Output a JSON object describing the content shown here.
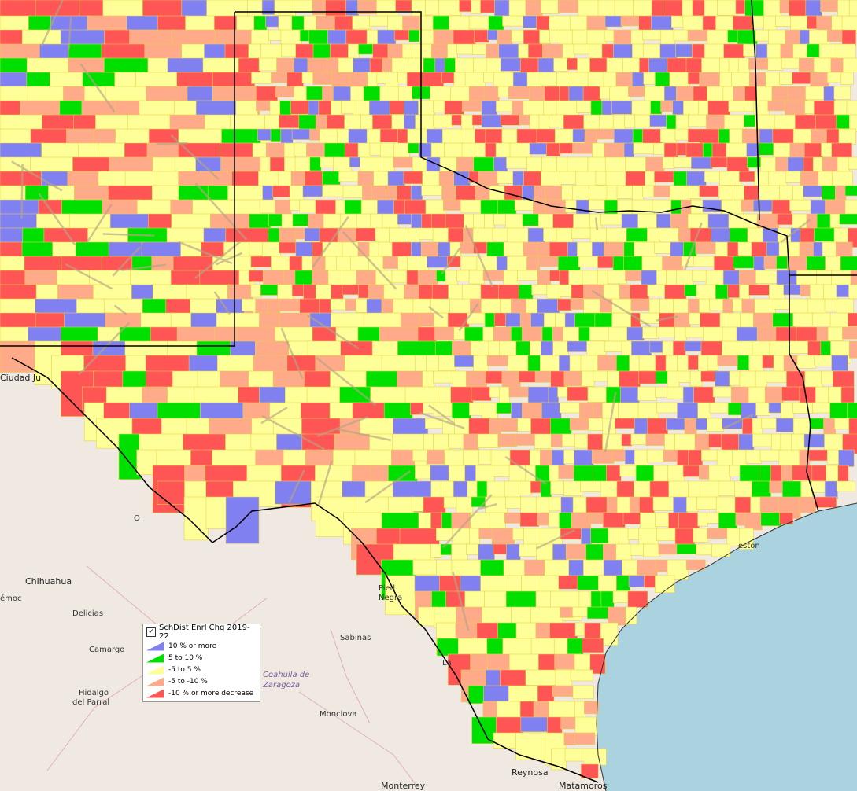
{
  "legend": {
    "checkbox": "✓",
    "title": "SchDist Enrl Chg 2019-22",
    "items": [
      {
        "label": "10 % or more",
        "color": "#8080f0"
      },
      {
        "label": "5 to 10 %",
        "color": "#00e000"
      },
      {
        "label": "-5 to 5 %",
        "color": "#ffff99"
      },
      {
        "label": "-5 to -10 %",
        "color": "#ffaa88"
      },
      {
        "label": "-10 % or more decrease",
        "color": "#ff5555"
      }
    ]
  },
  "colors": {
    "land": "#efe9e1",
    "water": "#aad3df",
    "state_border": "#000000",
    "county_border": "#b0a080"
  },
  "places": {
    "ciudad_juarez": "Ciudad Ju",
    "chihuahua": "Chihuahua",
    "democ": "émoc",
    "delicias": "Delicias",
    "camargo": "Camargo",
    "hidalgo": "Hidalgo\ndel Parral",
    "hidalgo_line1": "Hidalgo",
    "hidalgo_line2": "del Parral",
    "coahuila_line1": "Coahuila de",
    "coahuila_line2": "Zaragoza",
    "sabinas": "Sabinas",
    "monclova": "Monclova",
    "piedras_line1": "Pied",
    "piedras_line2": "Negra",
    "monterrey": "Monterrey",
    "reynosa": "Reynosa",
    "matamoros": "Matamoros",
    "galveston": "eston",
    "la": "La",
    "o": "O"
  }
}
